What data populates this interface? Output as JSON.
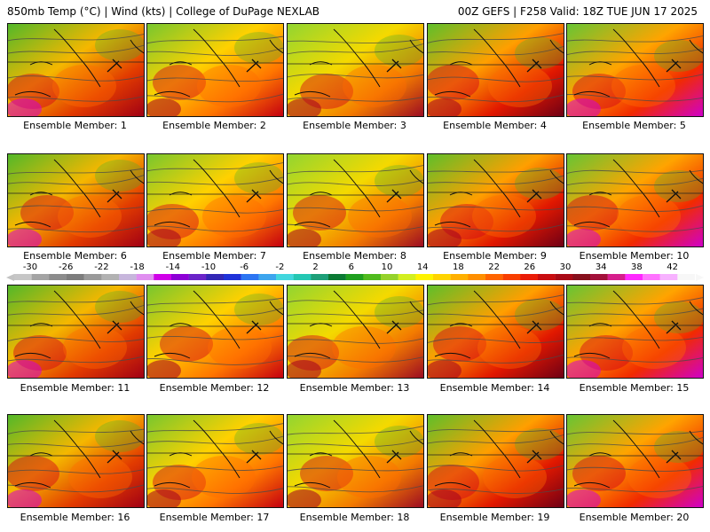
{
  "header": {
    "left": "850mb Temp (°C) | Wind (kts) | College of DuPage NEXLAB",
    "right": "00Z GEFS | F258 Valid: 18Z TUE JUN 17 2025"
  },
  "ensemble_members": [
    {
      "label": "Ensemble Member: 1"
    },
    {
      "label": "Ensemble Member: 2"
    },
    {
      "label": "Ensemble Member: 3"
    },
    {
      "label": "Ensemble Member: 4"
    },
    {
      "label": "Ensemble Member: 5"
    },
    {
      "label": "Ensemble Member: 6"
    },
    {
      "label": "Ensemble Member: 7"
    },
    {
      "label": "Ensemble Member: 8"
    },
    {
      "label": "Ensemble Member: 9"
    },
    {
      "label": "Ensemble Member: 10"
    },
    {
      "label": "Ensemble Member: 11"
    },
    {
      "label": "Ensemble Member: 12"
    },
    {
      "label": "Ensemble Member: 13"
    },
    {
      "label": "Ensemble Member: 14"
    },
    {
      "label": "Ensemble Member: 15"
    },
    {
      "label": "Ensemble Member: 16"
    },
    {
      "label": "Ensemble Member: 17"
    },
    {
      "label": "Ensemble Member: 18"
    },
    {
      "label": "Ensemble Member: 19"
    },
    {
      "label": "Ensemble Member: 20"
    }
  ],
  "colorbar": {
    "ticks": [
      "-30",
      "-26",
      "-22",
      "-18",
      "-14",
      "-10",
      "-6",
      "-2",
      "2",
      "6",
      "10",
      "14",
      "18",
      "22",
      "26",
      "30",
      "34",
      "38",
      "42"
    ],
    "colors": [
      "#c6c6c6",
      "#a4a4a4",
      "#8c8c8c",
      "#7d7d7d",
      "#9a9a9a",
      "#b2b2b2",
      "#c7b6dc",
      "#e08ef0",
      "#d000e8",
      "#8d00d6",
      "#6a24c8",
      "#3327b5",
      "#1f32d9",
      "#2c75f2",
      "#3da5ee",
      "#42d7de",
      "#24c7b3",
      "#1d9f78",
      "#0b7a34",
      "#1f9f1f",
      "#50bb1e",
      "#95d22b",
      "#d3ef20",
      "#fef300",
      "#ffd400",
      "#ffb000",
      "#ff8f00",
      "#ff6400",
      "#f83e00",
      "#ea1c07",
      "#c80d10",
      "#a90a16",
      "#87101d",
      "#a2103a",
      "#d61e8c",
      "#ff28ff",
      "#ff73ff",
      "#f7b2ff",
      "#f7f7f7"
    ]
  }
}
